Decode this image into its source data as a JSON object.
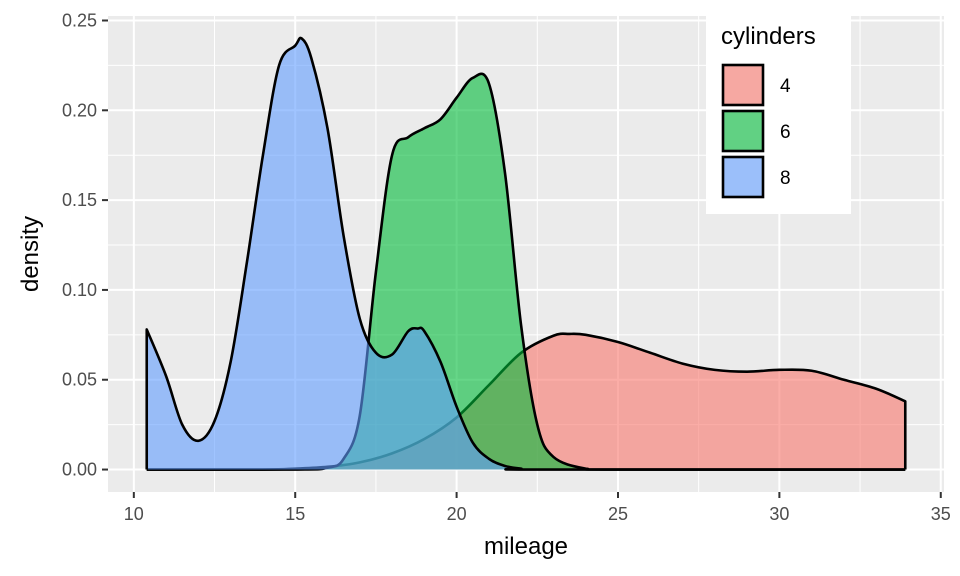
{
  "chart_data": {
    "type": "area",
    "subtype": "density",
    "xlabel": "mileage",
    "ylabel": "density",
    "xlim": [
      9.2,
      35.1
    ],
    "ylim": [
      -0.0125,
      0.2525
    ],
    "x_ticks": [
      10,
      15,
      20,
      25,
      30,
      35
    ],
    "x_tick_labels": [
      "10",
      "15",
      "20",
      "25",
      "30",
      "35"
    ],
    "y_ticks": [
      0,
      0.05,
      0.1,
      0.15,
      0.2,
      0.25
    ],
    "y_tick_labels": [
      "0.00",
      "0.05",
      "0.10",
      "0.15",
      "0.20",
      "0.25"
    ],
    "grid": true,
    "legend": {
      "title": "cylinders",
      "placement": "top-right",
      "entries": [
        "4",
        "6",
        "8"
      ]
    },
    "colors": {
      "4": "#F8766D",
      "6": "#00BA38",
      "8": "#619CFF",
      "panel": "#EBEBEB",
      "grid": "#FFFFFF"
    },
    "fill_opacity": 0.6,
    "series": [
      {
        "name": "4",
        "x": [
          10.4,
          14,
          15,
          16,
          17,
          18,
          19,
          20,
          21,
          22,
          23,
          23.5,
          24,
          25,
          26,
          27,
          28,
          29,
          30,
          31,
          32,
          33,
          33.9
        ],
        "y": [
          0.0,
          0.0,
          0.0005,
          0.0015,
          0.004,
          0.009,
          0.017,
          0.029,
          0.047,
          0.065,
          0.0745,
          0.0755,
          0.075,
          0.071,
          0.065,
          0.059,
          0.0555,
          0.0545,
          0.0555,
          0.055,
          0.05,
          0.045,
          0.038
        ]
      },
      {
        "name": "6",
        "x": [
          10.4,
          15,
          16,
          16.5,
          17,
          17.5,
          18,
          18.5,
          19,
          19.5,
          20,
          20.5,
          21,
          21.5,
          22,
          22.5,
          23,
          24,
          25,
          33.9
        ],
        "y": [
          0.0,
          0.0,
          0.001,
          0.006,
          0.03,
          0.11,
          0.175,
          0.185,
          0.19,
          0.195,
          0.207,
          0.218,
          0.215,
          0.165,
          0.08,
          0.025,
          0.007,
          0.0005,
          0.0,
          0.0
        ]
      },
      {
        "name": "8",
        "x": [
          10.4,
          11,
          11.5,
          12,
          12.5,
          13,
          13.5,
          14,
          14.5,
          15,
          15.2,
          15.5,
          16,
          16.5,
          17,
          17.5,
          18,
          18.5,
          18.8,
          19,
          19.5,
          20,
          20.5,
          21,
          21.5,
          22,
          22.5,
          33.9
        ],
        "y": [
          0.078,
          0.052,
          0.025,
          0.016,
          0.027,
          0.06,
          0.115,
          0.175,
          0.225,
          0.236,
          0.24,
          0.229,
          0.19,
          0.13,
          0.084,
          0.065,
          0.064,
          0.077,
          0.0785,
          0.077,
          0.06,
          0.035,
          0.015,
          0.006,
          0.002,
          0.0005,
          0.0,
          0.0
        ]
      }
    ]
  }
}
